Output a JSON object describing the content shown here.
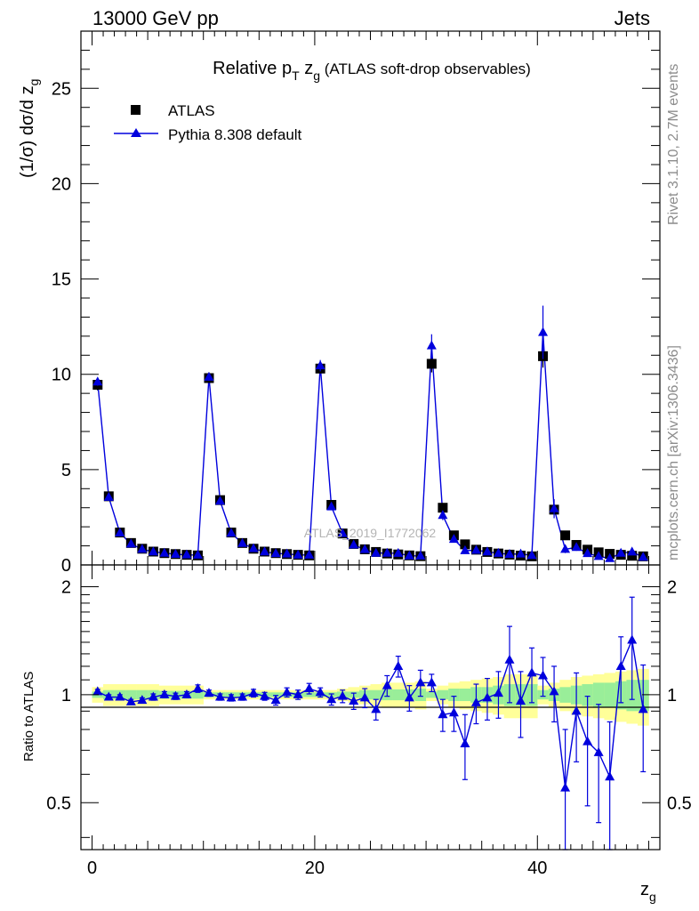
{
  "header": {
    "energy_label": "13000 GeV pp",
    "category_label": "Jets"
  },
  "side_labels": {
    "rivet": "Rivet 3.1.10,  2.7M events",
    "mcplots": "mcplots.cern.ch [arXiv:1306.3436]"
  },
  "chart_data": {
    "type": "scatter",
    "title_prefix": "Relative p",
    "title_sub1": "T",
    "title_mid": " z",
    "title_sub2": "g",
    "title_suffix": " (ATLAS soft-drop observables)",
    "ylabel_main": "(1/σ) dσ/d z",
    "ylabel_main_sub": "g",
    "ylabel_ratio": "Ratio to ATLAS",
    "xlabel": "z",
    "xlabel_sub": "g",
    "watermark": "ATLAS_2019_I1772062",
    "legend_position": "top-left",
    "xlim": [
      -1,
      51
    ],
    "ylim_main": [
      0,
      28
    ],
    "ylim_ratio": [
      0.37,
      2.3
    ],
    "x_ticks": [
      "0",
      "20",
      "40"
    ],
    "y_ticks_main": [
      "0",
      "5",
      "10",
      "15",
      "20",
      "25"
    ],
    "y_ticks_ratio": [
      "0.5",
      "1",
      "2"
    ],
    "colors": {
      "mc": "#0000dd",
      "data": "#000000",
      "band_inner": "#99ee99",
      "band_outer": "#ffff99"
    },
    "x": [
      0.5,
      1.5,
      2.5,
      3.5,
      4.5,
      5.5,
      6.5,
      7.5,
      8.5,
      9.5,
      10.5,
      11.5,
      12.5,
      13.5,
      14.5,
      15.5,
      16.5,
      17.5,
      18.5,
      19.5,
      20.5,
      21.5,
      22.5,
      23.5,
      24.5,
      25.5,
      26.5,
      27.5,
      28.5,
      29.5,
      30.5,
      31.5,
      32.5,
      33.5,
      34.5,
      35.5,
      36.5,
      37.5,
      38.5,
      39.5,
      40.5,
      41.5,
      42.5,
      43.5,
      44.5,
      45.5,
      46.5,
      47.5,
      48.5,
      49.5
    ],
    "series": [
      {
        "name": "ATLAS",
        "values": [
          9.45,
          3.6,
          1.7,
          1.15,
          0.85,
          0.7,
          0.62,
          0.57,
          0.53,
          0.5,
          9.8,
          3.4,
          1.7,
          1.15,
          0.85,
          0.7,
          0.62,
          0.57,
          0.53,
          0.5,
          10.3,
          3.15,
          1.65,
          1.1,
          0.82,
          0.68,
          0.6,
          0.55,
          0.5,
          0.46,
          10.55,
          3.0,
          1.55,
          1.08,
          0.8,
          0.68,
          0.6,
          0.54,
          0.49,
          0.45,
          10.95,
          2.9,
          1.55,
          1.05,
          0.8,
          0.66,
          0.58,
          0.53,
          0.48,
          0.45
        ],
        "errors": [
          0.3,
          0.12,
          0.05,
          0.04,
          0.03,
          0.02,
          0.02,
          0.02,
          0.02,
          0.02,
          0.3,
          0.12,
          0.05,
          0.04,
          0.03,
          0.02,
          0.02,
          0.02,
          0.02,
          0.02,
          0.35,
          0.12,
          0.06,
          0.04,
          0.03,
          0.03,
          0.03,
          0.02,
          0.02,
          0.02,
          0.45,
          0.15,
          0.07,
          0.05,
          0.04,
          0.04,
          0.03,
          0.03,
          0.03,
          0.03,
          0.6,
          0.2,
          0.1,
          0.07,
          0.05,
          0.05,
          0.05,
          0.05,
          0.05,
          0.05
        ]
      },
      {
        "name": "Pythia 8.308 default",
        "values": [
          9.6,
          3.55,
          1.68,
          1.1,
          0.82,
          0.69,
          0.62,
          0.56,
          0.53,
          0.52,
          9.85,
          3.35,
          1.67,
          1.13,
          0.86,
          0.69,
          0.6,
          0.58,
          0.52,
          0.52,
          10.45,
          3.05,
          1.65,
          1.05,
          0.81,
          0.62,
          0.62,
          0.61,
          0.48,
          0.47,
          11.5,
          2.6,
          1.35,
          0.75,
          0.77,
          0.69,
          0.61,
          0.56,
          0.58,
          0.5,
          12.2,
          2.95,
          0.82,
          0.92,
          0.6,
          0.45,
          0.34,
          0.62,
          0.68,
          0.41
        ],
        "errors": [
          0.2,
          0.1,
          0.05,
          0.04,
          0.03,
          0.03,
          0.03,
          0.02,
          0.02,
          0.02,
          0.2,
          0.1,
          0.05,
          0.04,
          0.03,
          0.03,
          0.03,
          0.03,
          0.02,
          0.02,
          0.3,
          0.12,
          0.06,
          0.05,
          0.05,
          0.05,
          0.04,
          0.04,
          0.04,
          0.04,
          0.6,
          0.25,
          0.14,
          0.11,
          0.1,
          0.09,
          0.09,
          0.09,
          0.09,
          0.08,
          1.4,
          0.5,
          0.2,
          0.18,
          0.15,
          0.13,
          0.12,
          0.12,
          0.12,
          0.12
        ],
        "ratio": [
          1.02,
          0.985,
          0.985,
          0.955,
          0.965,
          0.985,
          1.0,
          0.99,
          1.0,
          1.04,
          1.01,
          0.985,
          0.98,
          0.985,
          1.01,
          0.99,
          0.965,
          1.015,
          1.0,
          1.04,
          1.015,
          0.97,
          0.99,
          0.96,
          0.98,
          0.91,
          1.06,
          1.2,
          0.98,
          1.08,
          1.08,
          0.88,
          0.89,
          0.73,
          0.95,
          0.98,
          1.01,
          1.25,
          0.96,
          1.15,
          1.13,
          1.02,
          0.55,
          0.9,
          0.74,
          0.69,
          0.59,
          1.2,
          1.42,
          0.91
        ],
        "ratio_errors": [
          0.015,
          0.015,
          0.015,
          0.015,
          0.015,
          0.02,
          0.02,
          0.02,
          0.02,
          0.025,
          0.02,
          0.02,
          0.02,
          0.02,
          0.025,
          0.025,
          0.03,
          0.03,
          0.03,
          0.035,
          0.03,
          0.035,
          0.04,
          0.05,
          0.06,
          0.06,
          0.07,
          0.08,
          0.08,
          0.09,
          0.06,
          0.09,
          0.1,
          0.15,
          0.12,
          0.13,
          0.15,
          0.3,
          0.2,
          0.2,
          0.14,
          0.18,
          0.25,
          0.25,
          0.25,
          0.25,
          0.25,
          0.25,
          0.45,
          0.3
        ]
      }
    ],
    "band_inner": [
      0.02,
      0.03,
      0.03,
      0.03,
      0.03,
      0.03,
      0.025,
      0.025,
      0.025,
      0.025,
      0.015,
      0.015,
      0.015,
      0.015,
      0.015,
      0.015,
      0.015,
      0.015,
      0.015,
      0.015,
      0.015,
      0.015,
      0.02,
      0.02,
      0.03,
      0.03,
      0.035,
      0.035,
      0.035,
      0.04,
      0.02,
      0.03,
      0.04,
      0.04,
      0.05,
      0.05,
      0.06,
      0.07,
      0.07,
      0.07,
      0.03,
      0.04,
      0.05,
      0.06,
      0.07,
      0.08,
      0.08,
      0.09,
      0.1,
      0.1
    ],
    "band_outer": [
      0.05,
      0.07,
      0.07,
      0.07,
      0.07,
      0.07,
      0.06,
      0.06,
      0.06,
      0.06,
      0.03,
      0.03,
      0.03,
      0.03,
      0.03,
      0.03,
      0.03,
      0.03,
      0.03,
      0.03,
      0.03,
      0.03,
      0.04,
      0.05,
      0.06,
      0.07,
      0.08,
      0.08,
      0.08,
      0.09,
      0.04,
      0.06,
      0.08,
      0.09,
      0.1,
      0.11,
      0.12,
      0.14,
      0.14,
      0.14,
      0.06,
      0.08,
      0.1,
      0.12,
      0.13,
      0.14,
      0.15,
      0.16,
      0.17,
      0.18
    ]
  }
}
